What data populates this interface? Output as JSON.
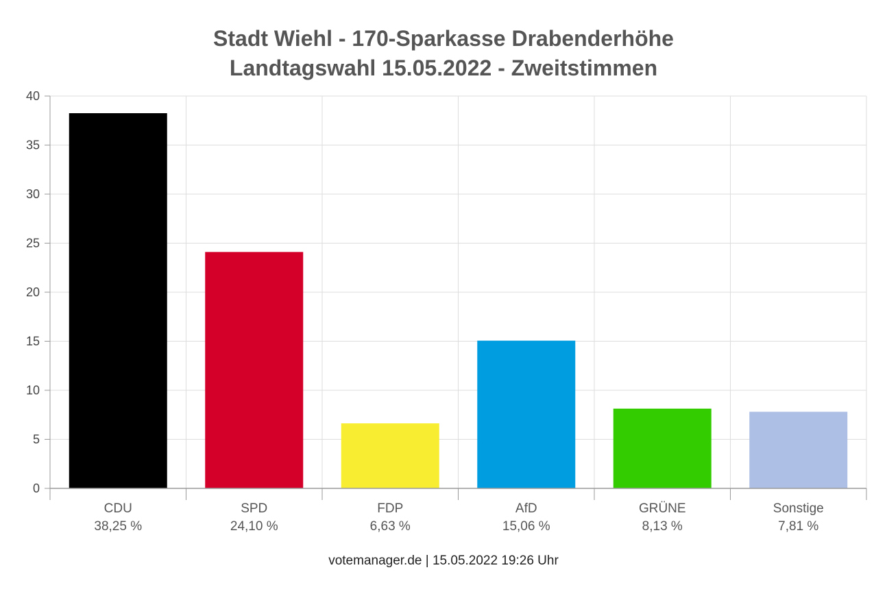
{
  "chart_data": {
    "type": "bar",
    "title": "Stadt Wiehl - 170-Sparkasse Drabenderhöhe",
    "subtitle": "Landtagswahl 15.05.2022  - Zweitstimmen",
    "categories": [
      "CDU",
      "SPD",
      "FDP",
      "AfD",
      "GRÜNE",
      "Sonstige"
    ],
    "values": [
      38.25,
      24.1,
      6.63,
      15.06,
      8.13,
      7.81
    ],
    "value_labels": [
      "38,25 %",
      "24,10 %",
      "6,63 %",
      "15,06 %",
      "8,13 %",
      "7,81 %"
    ],
    "colors": [
      "#000000",
      "#d5002a",
      "#f9ed31",
      "#009ee0",
      "#33cc00",
      "#aebfe6"
    ],
    "ylim": [
      0,
      40
    ],
    "yticks": [
      0,
      5,
      10,
      15,
      20,
      25,
      30,
      35,
      40
    ],
    "grid": true,
    "xlabel": "",
    "ylabel": ""
  },
  "footer": "votemanager.de | 15.05.2022 19:26 Uhr"
}
